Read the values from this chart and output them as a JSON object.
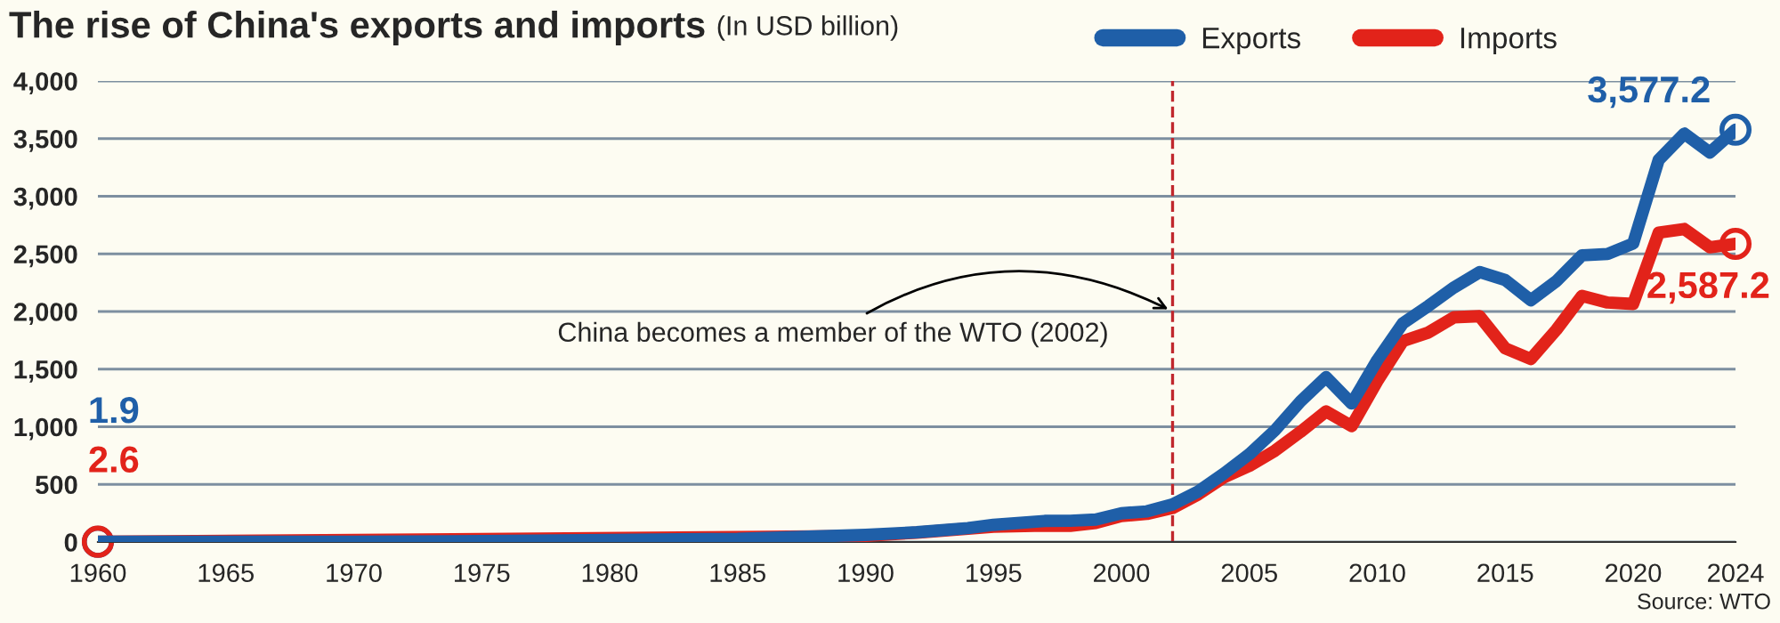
{
  "chart_data": {
    "type": "line",
    "title": "The rise of China's exports and imports",
    "subtitle": "(In USD billion)",
    "x": [
      1960,
      1965,
      1970,
      1975,
      1980,
      1985,
      1990,
      1992,
      1994,
      1995,
      1997,
      1998,
      1999,
      2000,
      2001,
      2002,
      2003,
      2004,
      2005,
      2006,
      2007,
      2008,
      2009,
      2010,
      2011,
      2012,
      2013,
      2014,
      2015,
      2016,
      2017,
      2018,
      2019,
      2020,
      2021,
      2022,
      2023,
      2024
    ],
    "series": [
      {
        "name": "Exports",
        "color": "#1f5fa8",
        "values": [
          1.9,
          2.2,
          2.3,
          7.7,
          18,
          27,
          62,
          85,
          121,
          149,
          183,
          184,
          195,
          249,
          266,
          326,
          438,
          593,
          762,
          969,
          1220,
          1430,
          1202,
          1578,
          1898,
          2049,
          2209,
          2342,
          2273,
          2098,
          2263,
          2487,
          2499,
          2590,
          3316,
          3544,
          3380,
          3577.2
        ],
        "value_labels": [
          "1.9",
          null,
          null,
          null,
          null,
          null,
          null,
          null,
          null,
          null,
          null,
          null,
          null,
          null,
          null,
          null,
          null,
          null,
          null,
          null,
          null,
          null,
          null,
          null,
          null,
          null,
          null,
          null,
          null,
          null,
          null,
          null,
          null,
          null,
          null,
          null,
          null,
          "3,577.2"
        ]
      },
      {
        "name": "Imports",
        "color": "#e2231a",
        "values": [
          2.6,
          null,
          null,
          null,
          null,
          42,
          53,
          81,
          116,
          132,
          142,
          140,
          166,
          225,
          244,
          295,
          413,
          561,
          660,
          792,
          956,
          1133,
          1006,
          1396,
          1743,
          1818,
          1950,
          1959,
          1680,
          1588,
          1842,
          2135,
          2078,
          2066,
          2684,
          2716,
          2557,
          2587.2
        ],
        "value_labels": [
          "2.6",
          null,
          null,
          null,
          null,
          null,
          null,
          null,
          null,
          null,
          null,
          null,
          null,
          null,
          null,
          null,
          null,
          null,
          null,
          null,
          null,
          null,
          null,
          null,
          null,
          null,
          null,
          null,
          null,
          null,
          null,
          null,
          null,
          null,
          null,
          null,
          null,
          "2,587.2"
        ]
      }
    ],
    "xlim": [
      1960,
      2024
    ],
    "xticks": [
      1960,
      1965,
      1970,
      1975,
      1980,
      1985,
      1990,
      1995,
      2000,
      2005,
      2010,
      2015,
      2020,
      2024
    ],
    "ylim": [
      0,
      4000
    ],
    "yticks": [
      {
        "value": 0,
        "label": "0"
      },
      {
        "value": 500,
        "label": "500"
      },
      {
        "value": 1000,
        "label": "1,000"
      },
      {
        "value": 1500,
        "label": "1,500"
      },
      {
        "value": 2000,
        "label": "2,000"
      },
      {
        "value": 2500,
        "label": "2,500"
      },
      {
        "value": 3000,
        "label": "3,000"
      },
      {
        "value": 3500,
        "label": "3,500"
      },
      {
        "value": 4000,
        "label": "4,000"
      }
    ],
    "ref_lines": [
      {
        "axis": "x",
        "value": 2002,
        "label": "China becomes a member of the WTO (2002)",
        "color": "#c0272d",
        "line_style": "dashed"
      }
    ],
    "annotations": [
      "Source: WTO"
    ],
    "grid": "y",
    "legend": "top right",
    "marker": "none",
    "line_style": "solid"
  }
}
